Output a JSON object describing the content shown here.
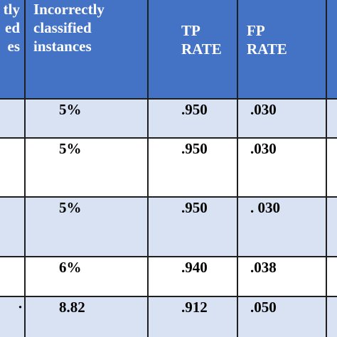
{
  "table": {
    "header": {
      "correct_col_fragment": "tly\ned\nes",
      "incorrect_col": "Incorrectly\nclassified\ninstances",
      "tp_col": "TP\nRATE",
      "fp_col": "FP\nRATE"
    },
    "rows": [
      {
        "incorrect": "5%",
        "tp": ".950",
        "fp": ".030"
      },
      {
        "incorrect": "5%",
        "tp": ".950",
        "fp": ".030"
      },
      {
        "incorrect": "5%",
        "tp": ".950",
        "fp": ". 030"
      },
      {
        "incorrect": "6%",
        "tp": ".940",
        "fp": ".038"
      },
      {
        "incorrect": "8.82",
        "tp": ".912",
        "fp": ".050",
        "first_fragment": "·"
      }
    ]
  },
  "colors": {
    "header_bg": "#4472c4",
    "band_bg": "#d9e2f3",
    "plain_bg": "#ffffff",
    "grid_line": "#1f1f1f"
  }
}
